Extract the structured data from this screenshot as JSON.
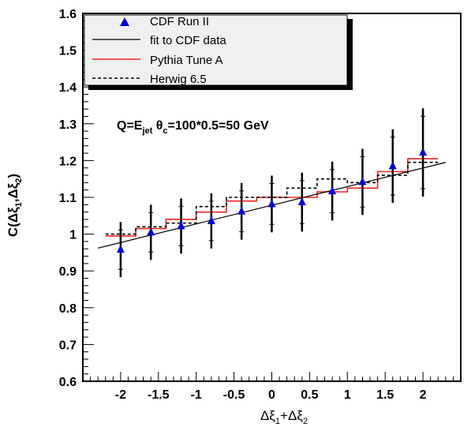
{
  "chart_data": {
    "type": "line",
    "title": "",
    "xlabel_parts": [
      "Δξ",
      "1",
      "+Δξ",
      "2"
    ],
    "ylabel_parts": [
      "C(Δξ",
      "1",
      ",Δξ",
      "2",
      ")"
    ],
    "xlim": [
      -2.5,
      2.5
    ],
    "ylim": [
      0.6,
      1.6
    ],
    "x_ticks": [
      "-2",
      "-1.5",
      "-1",
      "-0.5",
      "0",
      "0.5",
      "1",
      "1.5",
      "2"
    ],
    "y_ticks": [
      "0.6",
      "0.7",
      "0.8",
      "0.9",
      "1",
      "1.1",
      "1.2",
      "1.3",
      "1.4",
      "1.5",
      "1.6"
    ],
    "grid": false,
    "legend_position": "top-left",
    "annotation_parts": {
      "pre": "Q=E",
      "sub1": "jet",
      "mid": " θ",
      "sub2": "c",
      "post": "=100*0.5=50 GeV"
    },
    "series": [
      {
        "name": "CDF Run II",
        "kind": "points",
        "color": "#0000dd",
        "x": [
          -2.0,
          -1.6,
          -1.2,
          -0.8,
          -0.4,
          0.0,
          0.4,
          0.8,
          1.2,
          1.6,
          2.0
        ],
        "y": [
          0.958,
          1.005,
          1.022,
          1.036,
          1.062,
          1.082,
          1.087,
          1.117,
          1.142,
          1.185,
          1.222
        ],
        "err": [
          0.075,
          0.075,
          0.075,
          0.075,
          0.077,
          0.077,
          0.08,
          0.08,
          0.09,
          0.1,
          0.12
        ]
      },
      {
        "name": "fit to CDF data",
        "kind": "line",
        "color": "#000000",
        "x": [
          -2.3,
          2.3
        ],
        "y": [
          0.962,
          1.195
        ]
      },
      {
        "name": "Pythia Tune A",
        "kind": "step",
        "color": "#ee2222",
        "edges": [
          -2.2,
          -1.8,
          -1.4,
          -1.0,
          -0.6,
          -0.2,
          0.2,
          0.6,
          1.0,
          1.4,
          1.8,
          2.2
        ],
        "values": [
          0.995,
          1.015,
          1.04,
          1.06,
          1.09,
          1.1,
          1.1,
          1.115,
          1.125,
          1.17,
          1.205
        ]
      },
      {
        "name": "Herwig 6.5",
        "kind": "step",
        "color": "#000000",
        "dashed": true,
        "edges": [
          -2.2,
          -1.8,
          -1.4,
          -1.0,
          -0.6,
          -0.2,
          0.2,
          0.6,
          1.0,
          1.4,
          1.8,
          2.2
        ],
        "values": [
          1.0,
          1.02,
          1.03,
          1.075,
          1.1,
          1.1,
          1.125,
          1.15,
          1.14,
          1.16,
          1.195
        ]
      }
    ]
  }
}
